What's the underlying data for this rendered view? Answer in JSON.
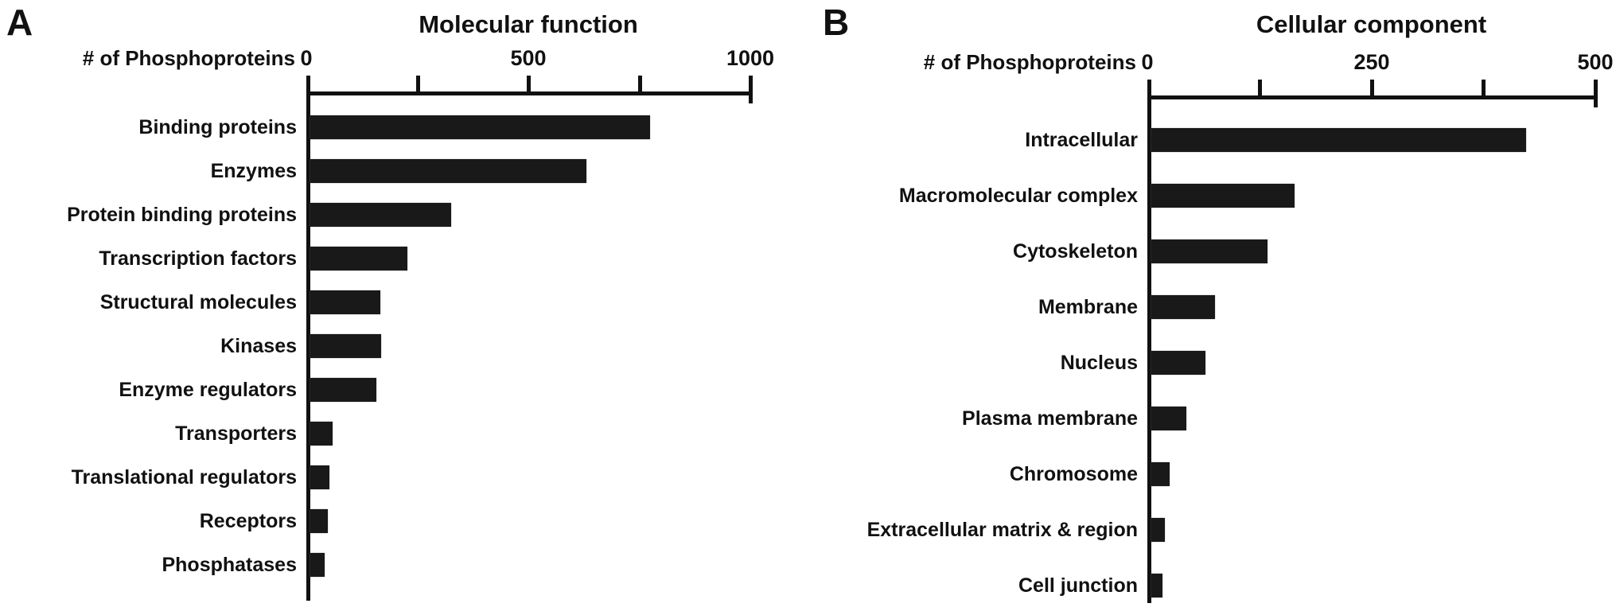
{
  "figure": {
    "background": "#ffffff",
    "bar_color": "#191919",
    "axis_color": "#111111",
    "text_color": "#111111"
  },
  "chart_data": [
    {
      "type": "bar",
      "orientation": "horizontal",
      "panel_letter": "A",
      "title": "Molecular function",
      "axis_label": "# of Phosphoproteins",
      "xlim": [
        0,
        1000
      ],
      "grid": false,
      "ticks": [
        {
          "value": 0,
          "label": "0"
        },
        {
          "value": 250,
          "label": ""
        },
        {
          "value": 500,
          "label": "500"
        },
        {
          "value": 750,
          "label": ""
        },
        {
          "value": 1000,
          "label": "1000"
        }
      ],
      "categories": [
        "Binding proteins",
        "Enzymes",
        "Protein binding proteins",
        "Transcription factors",
        "Structural molecules",
        "Kinases",
        "Enzyme regulators",
        "Transporters",
        "Translational regulators",
        "Receptors",
        "Phosphatases"
      ],
      "values": [
        765,
        622,
        317,
        219,
        158,
        160,
        149,
        50,
        43,
        39,
        32
      ]
    },
    {
      "type": "bar",
      "orientation": "horizontal",
      "panel_letter": "B",
      "title": "Cellular component",
      "axis_label": "# of Phosphoproteins",
      "xlim": [
        0,
        500
      ],
      "grid": false,
      "ticks": [
        {
          "value": 0,
          "label": "0"
        },
        {
          "value": 125,
          "label": ""
        },
        {
          "value": 250,
          "label": "250"
        },
        {
          "value": 375,
          "label": ""
        },
        {
          "value": 500,
          "label": "500"
        }
      ],
      "categories": [
        "Intracellular",
        "Macromolecular complex",
        "Cytoskeleton",
        "Membrane",
        "Nucleus",
        "Plasma membrane",
        "Chromosome",
        "Extracellular matrix & region",
        "Cell junction"
      ],
      "values": [
        418,
        160,
        130,
        71,
        60,
        39,
        20,
        15,
        12
      ]
    }
  ]
}
